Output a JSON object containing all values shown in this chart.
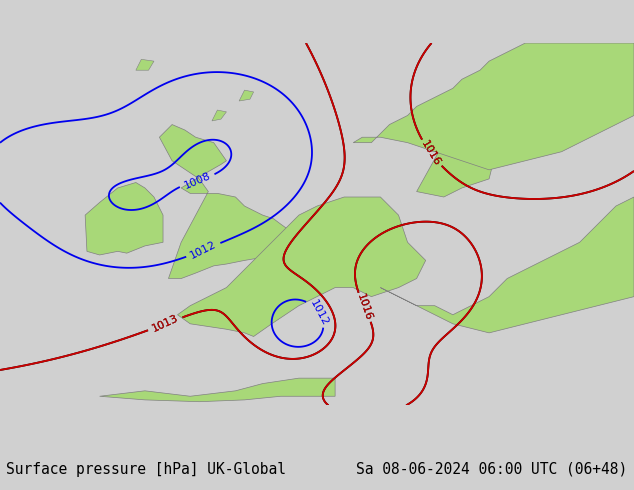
{
  "title_left": "Surface pressure [hPa] UK-Global",
  "title_right": "Sa 08-06-2024 06:00 UTC (06+48)",
  "title_fontsize": 10.5,
  "bg_color": "#d0d0d0",
  "land_color": "#a8d878",
  "land_border_color": "#808080",
  "sea_color": "#d8d8d8",
  "blue_isobar_color": "#0000ee",
  "black_isobar_color": "#000000",
  "red_isobar_color": "#cc0000",
  "label_fontsize": 8,
  "bottom_bar_color": "#f0f0f0"
}
